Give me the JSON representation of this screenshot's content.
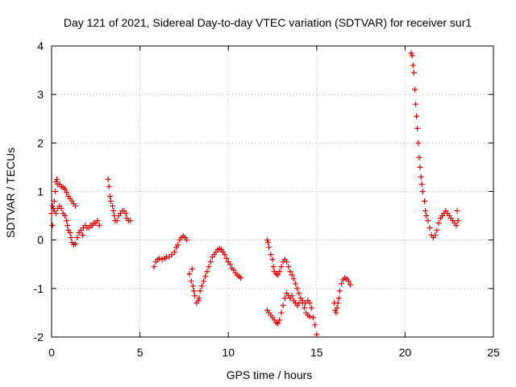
{
  "chart_data": {
    "type": "scatter",
    "title": "Day 121 of 2021, Sidereal Day-to-day VTEC variation (SDTVAR) for receiver sur1",
    "xlabel": "GPS time / hours",
    "ylabel": "SDTVAR / TECUs",
    "xlim": [
      0,
      25
    ],
    "ylim": [
      -2,
      4
    ],
    "xticks": [
      0,
      5,
      10,
      15,
      20,
      25
    ],
    "yticks": [
      -2,
      -1,
      0,
      1,
      2,
      3,
      4
    ],
    "grid": true,
    "marker": "plus",
    "color": "#e00000",
    "series": [
      {
        "name": "SDTVAR",
        "points": [
          [
            0.0,
            0.55
          ],
          [
            0.05,
            0.3
          ],
          [
            0.1,
            0.65
          ],
          [
            0.15,
            0.8
          ],
          [
            0.2,
            1.0
          ],
          [
            0.25,
            1.2
          ],
          [
            0.3,
            1.25
          ],
          [
            0.35,
            1.15
          ],
          [
            0.45,
            1.15
          ],
          [
            0.55,
            1.1
          ],
          [
            0.65,
            1.08
          ],
          [
            0.75,
            1.05
          ],
          [
            0.85,
            0.98
          ],
          [
            0.95,
            0.9
          ],
          [
            1.05,
            0.85
          ],
          [
            1.15,
            0.8
          ],
          [
            1.25,
            0.75
          ],
          [
            1.35,
            0.7
          ],
          [
            0.05,
            0.7
          ],
          [
            0.15,
            0.6
          ],
          [
            0.25,
            0.55
          ],
          [
            0.35,
            0.65
          ],
          [
            0.45,
            0.7
          ],
          [
            0.55,
            0.65
          ],
          [
            0.65,
            0.55
          ],
          [
            0.75,
            0.5
          ],
          [
            0.85,
            0.4
          ],
          [
            0.9,
            0.3
          ],
          [
            0.95,
            0.2
          ],
          [
            1.05,
            0.15
          ],
          [
            1.1,
            0.05
          ],
          [
            1.15,
            -0.05
          ],
          [
            1.25,
            -0.1
          ],
          [
            1.35,
            -0.08
          ],
          [
            1.45,
            0.05
          ],
          [
            1.55,
            0.15
          ],
          [
            1.65,
            0.2
          ],
          [
            1.75,
            0.1
          ],
          [
            1.8,
            0.25
          ],
          [
            1.9,
            0.3
          ],
          [
            2.0,
            0.25
          ],
          [
            2.1,
            0.25
          ],
          [
            2.2,
            0.3
          ],
          [
            2.3,
            0.3
          ],
          [
            2.4,
            0.35
          ],
          [
            2.5,
            0.35
          ],
          [
            2.6,
            0.4
          ],
          [
            2.7,
            0.3
          ],
          [
            3.2,
            1.25
          ],
          [
            3.25,
            1.1
          ],
          [
            3.3,
            0.9
          ],
          [
            3.35,
            0.8
          ],
          [
            3.45,
            0.7
          ],
          [
            3.5,
            0.6
          ],
          [
            3.55,
            0.5
          ],
          [
            3.6,
            0.4
          ],
          [
            3.7,
            0.4
          ],
          [
            3.8,
            0.5
          ],
          [
            3.9,
            0.55
          ],
          [
            4.0,
            0.6
          ],
          [
            4.1,
            0.6
          ],
          [
            4.2,
            0.55
          ],
          [
            4.25,
            0.45
          ],
          [
            4.35,
            0.4
          ],
          [
            4.45,
            0.4
          ],
          [
            5.8,
            -0.55
          ],
          [
            5.9,
            -0.45
          ],
          [
            6.0,
            -0.4
          ],
          [
            6.1,
            -0.38
          ],
          [
            6.25,
            -0.4
          ],
          [
            6.4,
            -0.38
          ],
          [
            6.5,
            -0.35
          ],
          [
            6.65,
            -0.35
          ],
          [
            6.8,
            -0.3
          ],
          [
            6.95,
            -0.25
          ],
          [
            7.05,
            -0.15
          ],
          [
            7.15,
            -0.1
          ],
          [
            7.25,
            0.0
          ],
          [
            7.35,
            0.05
          ],
          [
            7.45,
            0.08
          ],
          [
            7.55,
            0.05
          ],
          [
            7.65,
            0.0
          ],
          [
            7.8,
            -0.7
          ],
          [
            7.9,
            -0.85
          ],
          [
            7.95,
            -0.6
          ],
          [
            8.0,
            -0.95
          ],
          [
            8.05,
            -1.05
          ],
          [
            8.1,
            -1.15
          ],
          [
            8.2,
            -1.3
          ],
          [
            8.3,
            -1.25
          ],
          [
            8.35,
            -1.2
          ],
          [
            8.4,
            -1.05
          ],
          [
            8.5,
            -0.95
          ],
          [
            8.6,
            -0.85
          ],
          [
            8.7,
            -0.75
          ],
          [
            8.8,
            -0.65
          ],
          [
            8.9,
            -0.55
          ],
          [
            9.0,
            -0.45
          ],
          [
            9.1,
            -0.35
          ],
          [
            9.2,
            -0.3
          ],
          [
            9.3,
            -0.25
          ],
          [
            9.4,
            -0.2
          ],
          [
            9.5,
            -0.18
          ],
          [
            9.6,
            -0.2
          ],
          [
            9.7,
            -0.25
          ],
          [
            9.8,
            -0.3
          ],
          [
            9.9,
            -0.38
          ],
          [
            10.0,
            -0.45
          ],
          [
            10.1,
            -0.5
          ],
          [
            10.2,
            -0.58
          ],
          [
            10.3,
            -0.62
          ],
          [
            10.4,
            -0.68
          ],
          [
            10.5,
            -0.72
          ],
          [
            10.6,
            -0.75
          ],
          [
            10.7,
            -0.78
          ],
          [
            12.2,
            0.0
          ],
          [
            12.25,
            -0.05
          ],
          [
            12.3,
            -0.15
          ],
          [
            12.4,
            -0.3
          ],
          [
            12.5,
            -0.4
          ],
          [
            12.55,
            -0.55
          ],
          [
            12.6,
            -0.65
          ],
          [
            12.7,
            -0.7
          ],
          [
            12.8,
            -0.72
          ],
          [
            12.9,
            -0.65
          ],
          [
            13.0,
            -0.55
          ],
          [
            13.1,
            -0.45
          ],
          [
            13.2,
            -0.4
          ],
          [
            13.3,
            -0.45
          ],
          [
            13.4,
            -0.55
          ],
          [
            13.5,
            -0.65
          ],
          [
            13.6,
            -0.72
          ],
          [
            13.7,
            -0.8
          ],
          [
            13.8,
            -0.9
          ],
          [
            13.9,
            -1.0
          ],
          [
            14.0,
            -1.1
          ],
          [
            14.1,
            -1.2
          ],
          [
            14.2,
            -1.3
          ],
          [
            14.3,
            -1.4
          ],
          [
            14.4,
            -1.5
          ],
          [
            14.5,
            -1.55
          ],
          [
            14.6,
            -1.58
          ],
          [
            12.2,
            -1.45
          ],
          [
            12.3,
            -1.5
          ],
          [
            12.4,
            -1.55
          ],
          [
            12.5,
            -1.6
          ],
          [
            12.6,
            -1.65
          ],
          [
            12.7,
            -1.7
          ],
          [
            12.8,
            -1.72
          ],
          [
            12.9,
            -1.65
          ],
          [
            13.0,
            -1.5
          ],
          [
            13.1,
            -1.35
          ],
          [
            13.2,
            -1.2
          ],
          [
            13.3,
            -1.1
          ],
          [
            13.4,
            -1.15
          ],
          [
            13.5,
            -1.2
          ],
          [
            13.6,
            -1.15
          ],
          [
            13.7,
            -1.25
          ],
          [
            13.8,
            -1.3
          ],
          [
            13.9,
            -1.35
          ],
          [
            14.0,
            -1.3
          ],
          [
            14.2,
            -1.25
          ],
          [
            14.35,
            -1.3
          ],
          [
            14.5,
            -1.25
          ],
          [
            14.6,
            -1.3
          ],
          [
            14.7,
            -1.4
          ],
          [
            14.8,
            -1.6
          ],
          [
            14.9,
            -1.75
          ],
          [
            15.0,
            -1.95
          ],
          [
            16.0,
            -1.3
          ],
          [
            16.05,
            -1.45
          ],
          [
            16.1,
            -1.5
          ],
          [
            16.15,
            -1.4
          ],
          [
            16.2,
            -1.3
          ],
          [
            16.25,
            -1.2
          ],
          [
            16.3,
            -1.05
          ],
          [
            16.4,
            -0.9
          ],
          [
            16.5,
            -0.82
          ],
          [
            16.6,
            -0.78
          ],
          [
            16.7,
            -0.8
          ],
          [
            16.8,
            -0.85
          ],
          [
            16.9,
            -0.92
          ],
          [
            20.35,
            3.85
          ],
          [
            20.4,
            3.8
          ],
          [
            20.45,
            3.6
          ],
          [
            20.5,
            3.45
          ],
          [
            20.55,
            3.1
          ],
          [
            20.6,
            2.8
          ],
          [
            20.65,
            2.55
          ],
          [
            20.7,
            2.3
          ],
          [
            20.75,
            2.0
          ],
          [
            20.8,
            1.7
          ],
          [
            20.85,
            1.5
          ],
          [
            20.9,
            1.3
          ],
          [
            20.95,
            1.15
          ],
          [
            21.0,
            1.0
          ],
          [
            21.1,
            0.8
          ],
          [
            21.15,
            0.6
          ],
          [
            21.2,
            0.5
          ],
          [
            21.3,
            0.4
          ],
          [
            21.4,
            0.25
          ],
          [
            21.5,
            0.1
          ],
          [
            21.6,
            0.05
          ],
          [
            21.7,
            0.1
          ],
          [
            21.8,
            0.2
          ],
          [
            21.9,
            0.35
          ],
          [
            22.0,
            0.45
          ],
          [
            22.1,
            0.5
          ],
          [
            22.2,
            0.55
          ],
          [
            22.3,
            0.6
          ],
          [
            22.4,
            0.55
          ],
          [
            22.5,
            0.5
          ],
          [
            22.6,
            0.45
          ],
          [
            22.7,
            0.4
          ],
          [
            22.8,
            0.35
          ],
          [
            22.9,
            0.3
          ],
          [
            23.0,
            0.4
          ],
          [
            22.95,
            0.6
          ]
        ]
      }
    ]
  }
}
